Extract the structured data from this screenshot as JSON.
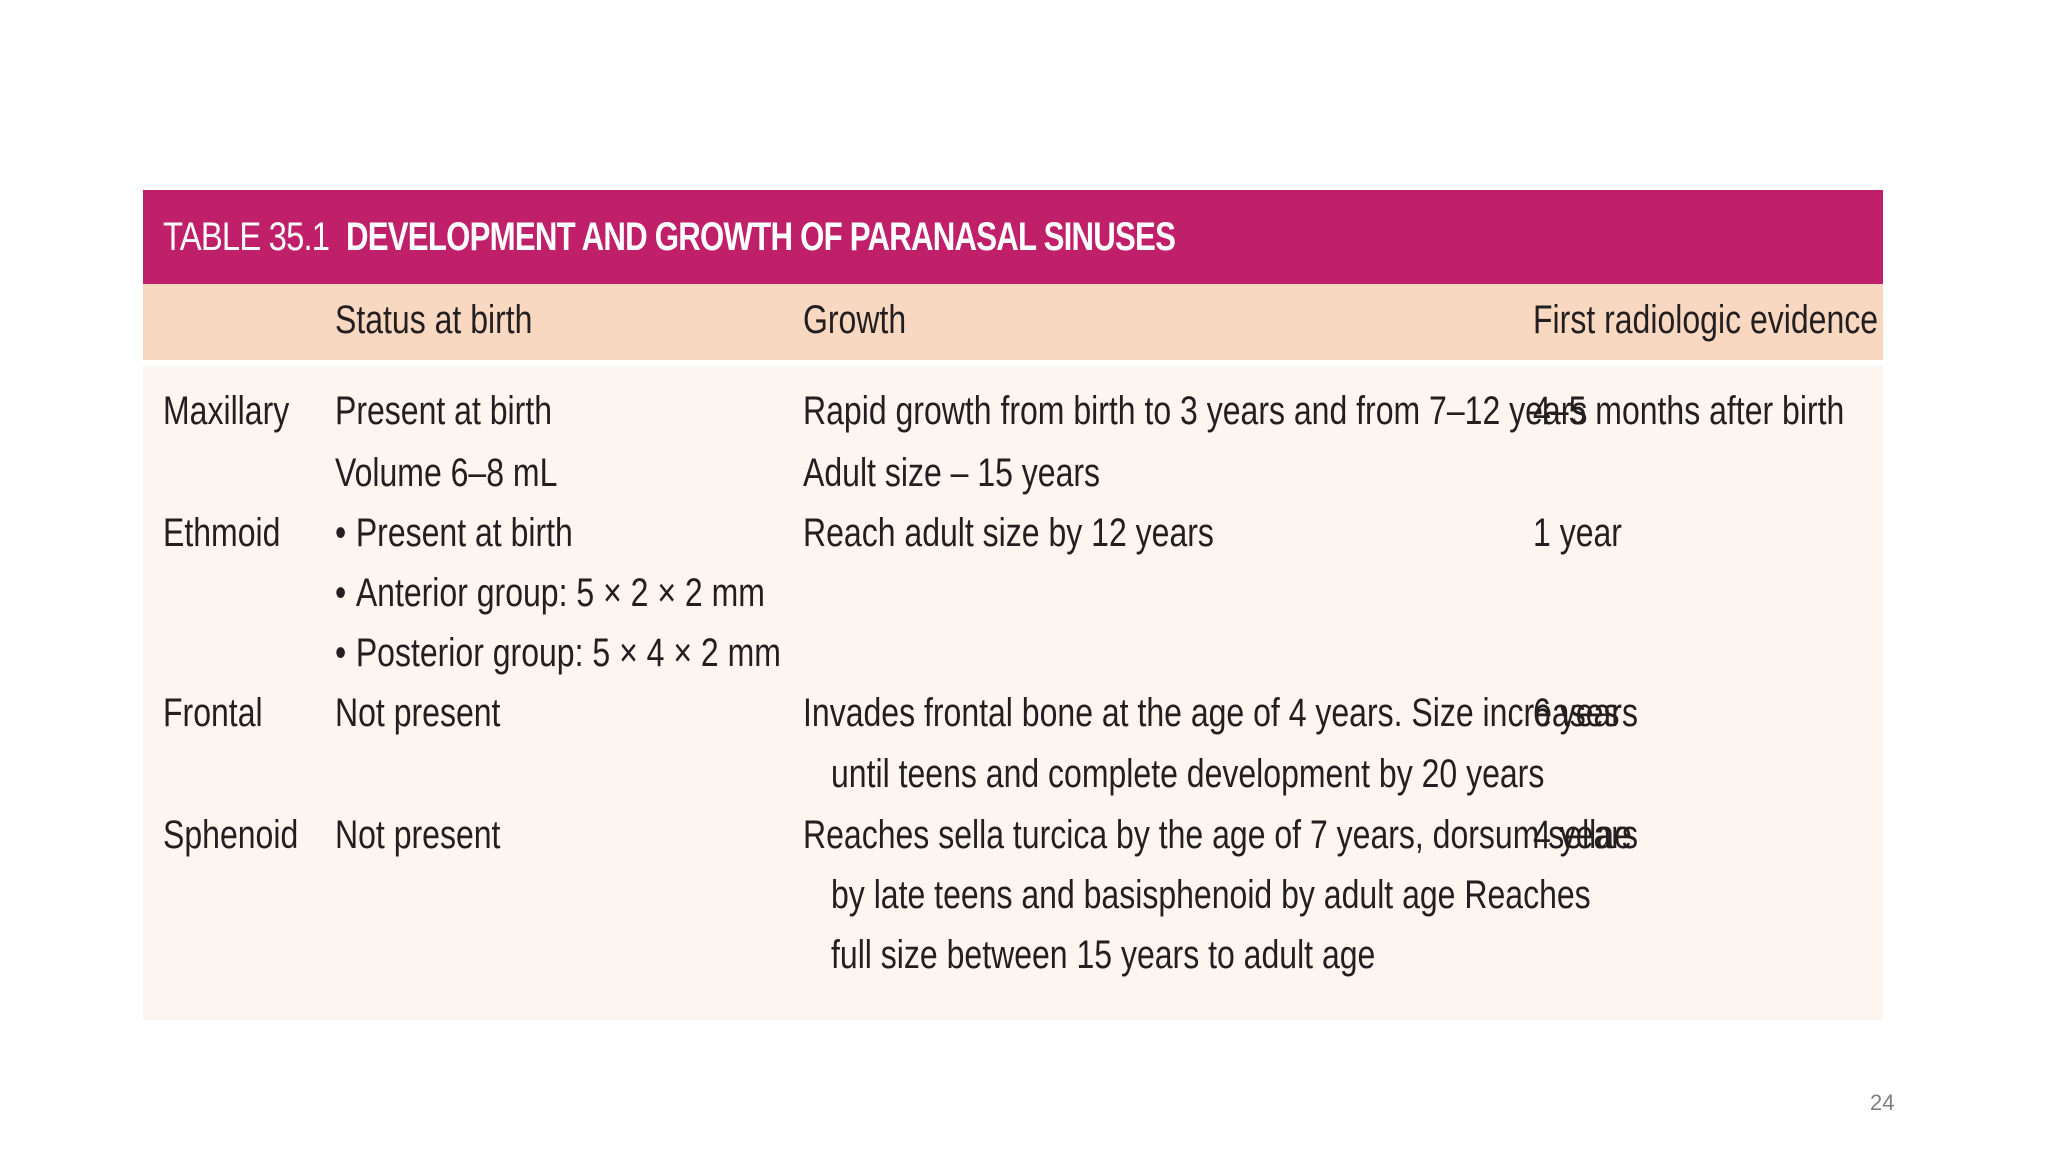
{
  "table": {
    "number": "TABLE 35.1",
    "title": "DEVELOPMENT AND GROWTH OF PARANASAL SINUSES",
    "columns": [
      "",
      "Status at birth",
      "Growth",
      "First radiologic evidence"
    ],
    "rows": [
      {
        "sinus": "Maxillary",
        "status": [
          "Present at birth",
          "Volume 6–8 mL"
        ],
        "growth": [
          "Rapid growth from birth to 3 years and from 7–12 years",
          "Adult size – 15 years"
        ],
        "radiologic": "4–5 months after birth"
      },
      {
        "sinus": "Ethmoid",
        "status": [
          "Present at birth",
          "Anterior group: 5 × 2 × 2 mm",
          "Posterior group: 5 × 4 × 2 mm"
        ],
        "growth": [
          "Reach adult size by 12 years"
        ],
        "radiologic": "1 year"
      },
      {
        "sinus": "Frontal",
        "status": [
          "Not present"
        ],
        "growth": [
          "Invades frontal bone at the age of 4 years. Size increases",
          "until teens and complete development by 20 years"
        ],
        "radiologic": "6 years"
      },
      {
        "sinus": "Sphenoid",
        "status": [
          "Not present"
        ],
        "growth": [
          "Reaches sella turcica by the age of 7 years, dorsum sellae",
          "by late teens and basisphenoid by adult age Reaches",
          "full size between 15 years to adult age"
        ],
        "radiologic": "4 years"
      }
    ]
  },
  "slide": {
    "page_number": "24"
  },
  "colors": {
    "header_bg": "#c0206a",
    "subheader_bg": "#f9d8c2",
    "body_bg": "#fdf5ef",
    "text": "#231f20"
  }
}
